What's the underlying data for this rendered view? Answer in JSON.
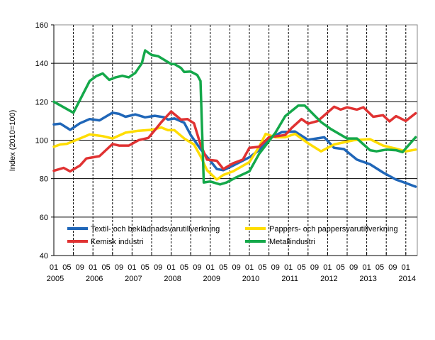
{
  "chart_data": {
    "type": "line",
    "title": "",
    "xlabel": "",
    "ylabel": "Index (2010=100)",
    "ylim": [
      40,
      160
    ],
    "yticks": [
      40,
      60,
      80,
      100,
      120,
      140,
      160
    ],
    "xlim": [
      "2005-01",
      "2014-04"
    ],
    "xtick_months": [
      "01",
      "05",
      "09"
    ],
    "xtick_years": [
      "2005",
      "2006",
      "2007",
      "2008",
      "2009",
      "2010",
      "2011",
      "2012",
      "2013",
      "2014"
    ],
    "grid": {
      "horizontal": "solid",
      "vertical": "dashed, every 6 months"
    },
    "legend_placement": "bottom inside plot",
    "series": [
      {
        "name": "Textil- och beklädnadsvarutillverkning",
        "color": "#1f66b8",
        "points": [
          [
            "2005-01",
            108.2
          ],
          [
            "2005-03",
            108.6
          ],
          [
            "2005-06",
            105.4
          ],
          [
            "2005-09",
            108.8
          ],
          [
            "2005-12",
            111
          ],
          [
            "2006-03",
            110.3
          ],
          [
            "2006-07",
            114.3
          ],
          [
            "2006-09",
            113.7
          ],
          [
            "2006-11",
            112.2
          ],
          [
            "2007-02",
            113.4
          ],
          [
            "2007-05",
            111.9
          ],
          [
            "2007-08",
            112.7
          ],
          [
            "2007-11",
            111.9
          ],
          [
            "2007-12",
            110.7
          ],
          [
            "2008-02",
            111.3
          ],
          [
            "2008-05",
            109.1
          ],
          [
            "2008-07",
            102.7
          ],
          [
            "2008-10",
            95.4
          ],
          [
            "2009-01",
            89.3
          ],
          [
            "2009-03",
            85
          ],
          [
            "2009-05",
            84.4
          ],
          [
            "2009-08",
            86.8
          ],
          [
            "2010-01",
            91.1
          ],
          [
            "2010-04",
            94.8
          ],
          [
            "2010-07",
            100.9
          ],
          [
            "2010-11",
            104.2
          ],
          [
            "2011-03",
            104.5
          ],
          [
            "2011-07",
            100.2
          ],
          [
            "2011-12",
            101.5
          ],
          [
            "2012-03",
            96
          ],
          [
            "2012-06",
            95.4
          ],
          [
            "2012-10",
            89.9
          ],
          [
            "2013-02",
            87.5
          ],
          [
            "2013-06",
            83.2
          ],
          [
            "2013-10",
            79.5
          ],
          [
            "2014-01",
            77.7
          ],
          [
            "2014-04",
            75.8
          ]
        ]
      },
      {
        "name": "Pappers- och pappersvarutillverkning",
        "color": "#ffdd00",
        "points": [
          [
            "2005-01",
            96.6
          ],
          [
            "2005-03",
            97.8
          ],
          [
            "2005-05",
            98.1
          ],
          [
            "2005-09",
            100.9
          ],
          [
            "2005-12",
            103
          ],
          [
            "2006-04",
            102.1
          ],
          [
            "2006-07",
            100.9
          ],
          [
            "2006-11",
            103.9
          ],
          [
            "2007-03",
            104.9
          ],
          [
            "2007-07",
            105.4
          ],
          [
            "2007-10",
            106.6
          ],
          [
            "2007-12",
            105.2
          ],
          [
            "2008-02",
            105.2
          ],
          [
            "2008-05",
            100.9
          ],
          [
            "2008-08",
            97.8
          ],
          [
            "2008-10",
            91.7
          ],
          [
            "2008-12",
            84.4
          ],
          [
            "2009-03",
            79.5
          ],
          [
            "2009-05",
            81.9
          ],
          [
            "2009-08",
            83.8
          ],
          [
            "2010-01",
            88.6
          ],
          [
            "2010-04",
            96.6
          ],
          [
            "2010-06",
            103.3
          ],
          [
            "2010-09",
            101.5
          ],
          [
            "2010-12",
            101.5
          ],
          [
            "2011-03",
            103.3
          ],
          [
            "2011-07",
            98.4
          ],
          [
            "2011-11",
            94.2
          ],
          [
            "2012-03",
            97.8
          ],
          [
            "2012-09",
            100
          ],
          [
            "2013-02",
            100.5
          ],
          [
            "2013-06",
            97.2
          ],
          [
            "2013-10",
            95.6
          ],
          [
            "2014-01",
            94.2
          ],
          [
            "2014-04",
            95.1
          ]
        ]
      },
      {
        "name": "Kemisk industri",
        "color": "#e03232",
        "points": [
          [
            "2005-01",
            84.1
          ],
          [
            "2005-04",
            85.6
          ],
          [
            "2005-06",
            83.8
          ],
          [
            "2005-09",
            86.8
          ],
          [
            "2005-11",
            90.5
          ],
          [
            "2006-01",
            91.1
          ],
          [
            "2006-03",
            91.7
          ],
          [
            "2006-07",
            98
          ],
          [
            "2006-09",
            97.2
          ],
          [
            "2006-12",
            97.2
          ],
          [
            "2007-03",
            100
          ],
          [
            "2007-06",
            101.2
          ],
          [
            "2007-08",
            105.2
          ],
          [
            "2007-10",
            109.4
          ],
          [
            "2008-01",
            114.9
          ],
          [
            "2008-04",
            110.7
          ],
          [
            "2008-06",
            111
          ],
          [
            "2008-08",
            108.8
          ],
          [
            "2008-10",
            97.8
          ],
          [
            "2008-12",
            89.9
          ],
          [
            "2009-03",
            89.3
          ],
          [
            "2009-05",
            85
          ],
          [
            "2009-08",
            88
          ],
          [
            "2009-11",
            89.9
          ],
          [
            "2010-01",
            96
          ],
          [
            "2010-04",
            96.6
          ],
          [
            "2010-07",
            101.5
          ],
          [
            "2010-12",
            102.7
          ],
          [
            "2011-02",
            106.4
          ],
          [
            "2011-05",
            111
          ],
          [
            "2011-07",
            108.6
          ],
          [
            "2011-10",
            110
          ],
          [
            "2012-03",
            117.4
          ],
          [
            "2012-05",
            115.9
          ],
          [
            "2012-07",
            117.1
          ],
          [
            "2012-10",
            115.9
          ],
          [
            "2012-12",
            117.1
          ],
          [
            "2013-03",
            112.2
          ],
          [
            "2013-06",
            113
          ],
          [
            "2013-08",
            109.8
          ],
          [
            "2013-10",
            112.5
          ],
          [
            "2014-01",
            110
          ],
          [
            "2014-04",
            114
          ]
        ]
      },
      {
        "name": "Metallindustri",
        "color": "#14a84a",
        "points": [
          [
            "2005-01",
            120
          ],
          [
            "2005-07",
            114.3
          ],
          [
            "2005-12",
            130.8
          ],
          [
            "2006-02",
            133.3
          ],
          [
            "2006-04",
            134.7
          ],
          [
            "2006-06",
            131.4
          ],
          [
            "2006-08",
            132.7
          ],
          [
            "2006-10",
            133.5
          ],
          [
            "2006-12",
            132.7
          ],
          [
            "2007-02",
            135
          ],
          [
            "2007-04",
            140
          ],
          [
            "2007-05",
            146.7
          ],
          [
            "2007-07",
            144.3
          ],
          [
            "2007-09",
            143.7
          ],
          [
            "2008-01",
            139.6
          ],
          [
            "2008-02",
            139.6
          ],
          [
            "2008-04",
            137.6
          ],
          [
            "2008-05",
            135.5
          ],
          [
            "2008-07",
            135.7
          ],
          [
            "2008-09",
            133.9
          ],
          [
            "2008-10",
            130.8
          ],
          [
            "2008-11",
            78
          ],
          [
            "2009-01",
            78.5
          ],
          [
            "2009-04",
            77
          ],
          [
            "2009-06",
            78
          ],
          [
            "2009-09",
            80.7
          ],
          [
            "2010-01",
            83.8
          ],
          [
            "2010-04",
            92.9
          ],
          [
            "2010-09",
            103.9
          ],
          [
            "2010-12",
            112.5
          ],
          [
            "2011-04",
            118
          ],
          [
            "2011-06",
            118
          ],
          [
            "2011-11",
            109.4
          ],
          [
            "2012-02",
            105.8
          ],
          [
            "2012-07",
            100.9
          ],
          [
            "2012-10",
            100.9
          ],
          [
            "2013-02",
            94.8
          ],
          [
            "2013-04",
            94.2
          ],
          [
            "2013-07",
            95.1
          ],
          [
            "2013-10",
            94.8
          ],
          [
            "2013-12",
            93.8
          ],
          [
            "2014-04",
            101.5
          ]
        ]
      }
    ]
  }
}
